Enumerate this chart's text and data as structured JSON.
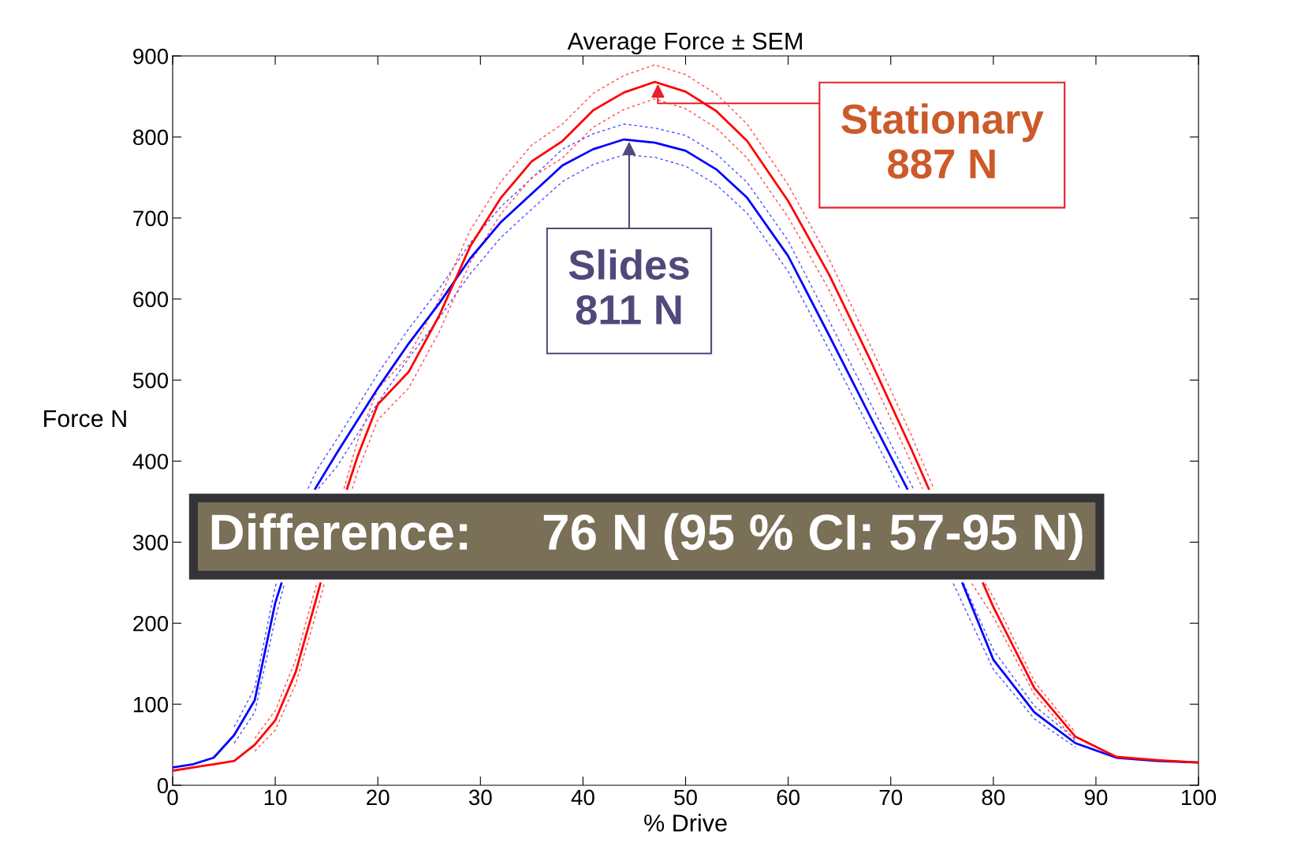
{
  "chart_data": {
    "type": "line",
    "title": "Average Force ± SEM",
    "xlabel": "% Drive",
    "ylabel": "Force N",
    "series": [
      {
        "color": "#5050ff",
        "line_style": "dashed",
        "x": [
          6,
          8,
          10,
          10.9,
          12,
          14.2,
          16,
          18,
          20,
          23,
          26,
          29,
          32,
          35,
          38,
          41,
          44,
          47,
          50,
          53,
          56,
          60,
          64,
          68,
          70.9,
          72,
          76.1,
          80,
          84,
          88
        ],
        "values": [
          52,
          90,
          205,
          249,
          null,
          366,
          393,
          433,
          472,
          527,
          577,
          631,
          676,
          711,
          745,
          766,
          778,
          775,
          764,
          741,
          706,
          634,
          537,
          438,
          366,
          null,
          249,
          143,
          82,
          47
        ]
      },
      {
        "color": "#5050ff",
        "line_style": "dashed",
        "x": [
          6,
          8,
          10,
          10.1,
          12,
          13.2,
          14,
          16,
          18,
          20,
          23,
          26,
          29,
          32,
          35,
          38,
          41,
          44,
          47,
          50,
          53,
          56,
          60,
          64,
          68,
          72.2,
          76,
          77.1,
          80,
          84,
          88
        ],
        "values": [
          72,
          120,
          245,
          249,
          null,
          366,
          388,
          427,
          467,
          508,
          563,
          613,
          669,
          714,
          749,
          785,
          804,
          816,
          811,
          802,
          779,
          744,
          672,
          573,
          472,
          366,
          null,
          249,
          167,
          98,
          57
        ]
      },
      {
        "color": "#0000ff",
        "x": [
          0,
          2,
          4,
          6,
          8,
          10,
          10.6,
          12,
          13.9,
          16,
          18,
          20,
          23,
          26,
          29,
          32,
          35,
          38,
          41,
          44,
          47,
          50,
          53,
          56,
          60,
          64,
          68,
          71.6,
          72,
          76,
          77,
          80,
          84,
          88,
          92,
          96,
          100
        ],
        "values": [
          22,
          26,
          34,
          62,
          105,
          225,
          249,
          null,
          366,
          410,
          450,
          490,
          545,
          595,
          650,
          695,
          730,
          765,
          785,
          797,
          793,
          783,
          760,
          725,
          653,
          555,
          455,
          366,
          null,
          null,
          249,
          155,
          90,
          52,
          34,
          30,
          28
        ]
      },
      {
        "color": "#ff5050",
        "line_style": "dashed",
        "x": [
          8,
          10,
          12,
          14,
          14.8,
          16,
          17.5,
          18,
          20,
          23,
          26,
          29,
          32,
          35,
          38,
          41,
          44,
          47,
          50,
          53,
          56,
          60,
          64,
          68,
          72,
          73.1,
          76,
          77.9,
          80,
          84,
          88
        ],
        "values": [
          42,
          68,
          125,
          213,
          249,
          null,
          366,
          386,
          451,
          490,
          560,
          645,
          705,
          750,
          774,
          812,
          834,
          847,
          835,
          811,
          774,
          701,
          611,
          507,
          398,
          366,
          null,
          249,
          208,
          112,
          55
        ]
      },
      {
        "color": "#ff5050",
        "line_style": "dashed",
        "x": [
          8,
          10,
          12,
          14,
          16,
          16.7,
          18,
          20,
          23,
          26,
          29,
          32,
          35,
          38,
          41,
          44,
          47,
          50,
          53,
          56,
          60,
          64,
          68,
          72,
          74.2,
          76,
          79.2,
          80,
          84,
          88
        ],
        "values": [
          58,
          92,
          155,
          247,
          null,
          366,
          424,
          489,
          530,
          600,
          685,
          745,
          790,
          816,
          854,
          876,
          889,
          877,
          853,
          816,
          741,
          649,
          543,
          432,
          366,
          null,
          249,
          232,
          128,
          65
        ]
      },
      {
        "color": "#ff0000",
        "x": [
          0,
          2,
          4,
          6,
          8,
          10,
          12,
          14,
          14.4,
          16,
          17,
          18,
          20,
          23,
          26,
          29,
          32,
          35,
          38,
          41,
          44,
          47,
          50,
          53,
          56,
          60,
          64,
          68,
          72,
          73.7,
          76,
          79,
          80,
          84,
          88,
          92,
          96,
          100
        ],
        "values": [
          18,
          22,
          26,
          30,
          50,
          80,
          140,
          230,
          249,
          null,
          366,
          405,
          470,
          510,
          580,
          665,
          725,
          770,
          795,
          833,
          855,
          868,
          856,
          832,
          795,
          721,
          630,
          525,
          415,
          366,
          null,
          249,
          220,
          120,
          60,
          35,
          31,
          28
        ]
      }
    ],
    "xlim": [
      0,
      100
    ],
    "ylim": [
      0,
      900
    ],
    "xticks": [
      0,
      10,
      20,
      30,
      40,
      50,
      60,
      70,
      80,
      90,
      100
    ],
    "yticks": [
      0,
      100,
      200,
      300,
      400,
      500,
      600,
      700,
      800,
      900
    ],
    "grid": false,
    "line_style": "solid",
    "annotations": [
      {
        "text": "Stationary\n887 N",
        "x": 47.3,
        "y": 868
      },
      {
        "text": "Slides\n811 N",
        "x": 44.5,
        "y": 797
      },
      "Difference:     76 N (95 % CI: 57-95 N)"
    ]
  }
}
